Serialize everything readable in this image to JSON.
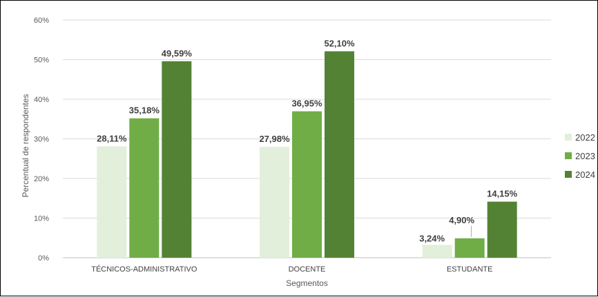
{
  "chart_data": {
    "type": "bar",
    "title": "",
    "xlabel": "Segmentos",
    "ylabel": "Percentual de respondentes",
    "categories": [
      "TÉCNICOS-ADMINISTRATIVO",
      "DOCENTE",
      "ESTUDANTE"
    ],
    "series": [
      {
        "name": "2022",
        "color": "#e2efda",
        "values": [
          28.11,
          27.98,
          3.24
        ],
        "labels": [
          "28,11%",
          "27,98%",
          "3,24%"
        ]
      },
      {
        "name": "2023",
        "color": "#70ad47",
        "values": [
          35.18,
          36.95,
          4.9
        ],
        "labels": [
          "35,18%",
          "36,95%",
          "4,90%"
        ]
      },
      {
        "name": "2024",
        "color": "#548235",
        "values": [
          49.59,
          52.1,
          14.15
        ],
        "labels": [
          "49,59%",
          "52,10%",
          "14,15%"
        ]
      }
    ],
    "ylim": [
      0,
      60
    ],
    "yticks": [
      0,
      10,
      20,
      30,
      40,
      50,
      60
    ],
    "ytick_labels": [
      "0%",
      "10%",
      "20%",
      "30%",
      "40%",
      "50%",
      "60%"
    ],
    "grid": true,
    "legend": "right"
  }
}
